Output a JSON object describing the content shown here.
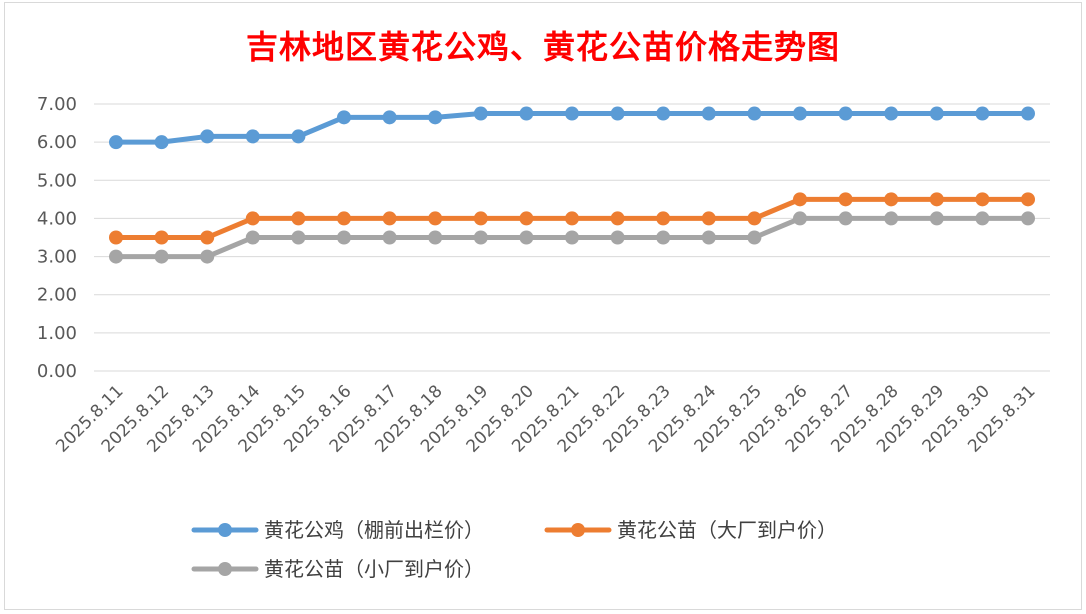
{
  "chart_data": {
    "type": "line",
    "title": "吉林地区黄花公鸡、黄花公苗价格走势图",
    "categories": [
      "2025.8.11",
      "2025.8.12",
      "2025.8.13",
      "2025.8.14",
      "2025.8.15",
      "2025.8.16",
      "2025.8.17",
      "2025.8.18",
      "2025.8.19",
      "2025.8.20",
      "2025.8.21",
      "2025.8.22",
      "2025.8.23",
      "2025.8.24",
      "2025.8.25",
      "2025.8.26",
      "2025.8.27",
      "2025.8.28",
      "2025.8.29",
      "2025.8.30",
      "2025.8.31"
    ],
    "series": [
      {
        "name": "黄花公鸡（棚前出栏价）",
        "color": "#5b9bd5",
        "values": [
          6.0,
          6.0,
          6.15,
          6.15,
          6.15,
          6.65,
          6.65,
          6.65,
          6.75,
          6.75,
          6.75,
          6.75,
          6.75,
          6.75,
          6.75,
          6.75,
          6.75,
          6.75,
          6.75,
          6.75,
          6.75
        ]
      },
      {
        "name": "黄花公苗（大厂到户价）",
        "color": "#ed7d31",
        "values": [
          3.5,
          3.5,
          3.5,
          4.0,
          4.0,
          4.0,
          4.0,
          4.0,
          4.0,
          4.0,
          4.0,
          4.0,
          4.0,
          4.0,
          4.0,
          4.5,
          4.5,
          4.5,
          4.5,
          4.5,
          4.5
        ]
      },
      {
        "name": "黄花公苗（小厂到户价）",
        "color": "#a5a5a5",
        "values": [
          3.0,
          3.0,
          3.0,
          3.5,
          3.5,
          3.5,
          3.5,
          3.5,
          3.5,
          3.5,
          3.5,
          3.5,
          3.5,
          3.5,
          3.5,
          4.0,
          4.0,
          4.0,
          4.0,
          4.0,
          4.0
        ]
      }
    ],
    "ylim": [
      0,
      7
    ],
    "yticks": [
      "0.00",
      "1.00",
      "2.00",
      "3.00",
      "4.00",
      "5.00",
      "6.00",
      "7.00"
    ],
    "grid": true,
    "legend_position": "bottom"
  }
}
